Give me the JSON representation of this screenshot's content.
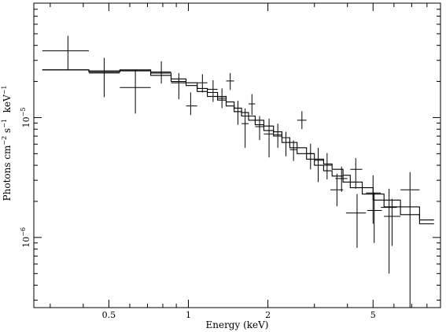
{
  "chart_data": {
    "type": "scatter",
    "xscale": "log",
    "yscale": "log",
    "xlim": [
      0.26,
      9.0
    ],
    "ylim": [
      2.6e-07,
      9e-05
    ],
    "xlabel": "Energy (keV)",
    "ylabel": {
      "base": "Photons cm",
      "exp1": "−2",
      "mid1": " s",
      "exp2": "−1",
      "mid2": "  keV",
      "exp3": "−1"
    },
    "x_ticks": [
      {
        "value": 0.5,
        "label": "0.5"
      },
      {
        "value": 1,
        "label": "1"
      },
      {
        "value": 2,
        "label": "2"
      },
      {
        "value": 5,
        "label": "5"
      }
    ],
    "y_ticks": [
      {
        "value": 1e-05,
        "base": "10",
        "exp": "−5"
      },
      {
        "value": 1e-06,
        "base": "10",
        "exp": "−6"
      }
    ],
    "series": [
      {
        "points": [
          {
            "x": 0.35,
            "xlo": 0.28,
            "xhi": 0.42,
            "y": 3.6e-05,
            "ylo": 2.5e-05,
            "yhi": 4.8e-05
          },
          {
            "x": 0.48,
            "xlo": 0.42,
            "xhi": 0.55,
            "y": 2.35e-05,
            "ylo": 1.48e-05,
            "yhi": 3.15e-05
          },
          {
            "x": 0.63,
            "xlo": 0.55,
            "xhi": 0.72,
            "y": 1.78e-05,
            "ylo": 1.08e-05,
            "yhi": 2.5e-05
          },
          {
            "x": 0.79,
            "xlo": 0.72,
            "xhi": 0.86,
            "y": 2.4e-05,
            "ylo": 1.92e-05,
            "yhi": 2.95e-05
          },
          {
            "x": 0.92,
            "xlo": 0.86,
            "xhi": 0.98,
            "y": 1.95e-05,
            "ylo": 1.42e-05,
            "yhi": 2.35e-05
          },
          {
            "x": 1.02,
            "xlo": 0.98,
            "xhi": 1.08,
            "y": 1.25e-05,
            "ylo": 1.05e-05,
            "yhi": 1.62e-05
          },
          {
            "x": 1.13,
            "xlo": 1.08,
            "xhi": 1.18,
            "y": 1.95e-05,
            "ylo": 1.62e-05,
            "yhi": 2.3e-05
          },
          {
            "x": 1.24,
            "xlo": 1.18,
            "xhi": 1.29,
            "y": 1.72e-05,
            "ylo": 1.35e-05,
            "yhi": 2.05e-05
          },
          {
            "x": 1.34,
            "xlo": 1.29,
            "xhi": 1.39,
            "y": 1.45e-05,
            "ylo": 1.2e-05,
            "yhi": 1.75e-05
          },
          {
            "x": 1.44,
            "xlo": 1.39,
            "xhi": 1.49,
            "y": 2.02e-05,
            "ylo": 1.7e-05,
            "yhi": 2.35e-05
          },
          {
            "x": 1.54,
            "xlo": 1.49,
            "xhi": 1.59,
            "y": 1.12e-05,
            "ylo": 8.7e-06,
            "yhi": 1.38e-05
          },
          {
            "x": 1.64,
            "xlo": 1.59,
            "xhi": 1.69,
            "y": 8.9e-06,
            "ylo": 5.6e-06,
            "yhi": 1.19e-05
          },
          {
            "x": 1.74,
            "xlo": 1.69,
            "xhi": 1.79,
            "y": 1.3e-05,
            "ylo": 1.05e-05,
            "yhi": 1.57e-05
          },
          {
            "x": 1.86,
            "xlo": 1.79,
            "xhi": 1.93,
            "y": 8.4e-06,
            "ylo": 6.5e-06,
            "yhi": 1.03e-05
          },
          {
            "x": 2.02,
            "xlo": 1.93,
            "xhi": 2.1,
            "y": 7.3e-06,
            "ylo": 4.65e-06,
            "yhi": 9.8e-06
          },
          {
            "x": 2.18,
            "xlo": 2.1,
            "xhi": 2.26,
            "y": 7.2e-06,
            "ylo": 5.6e-06,
            "yhi": 8.9e-06
          },
          {
            "x": 2.34,
            "xlo": 2.26,
            "xhi": 2.42,
            "y": 6.2e-06,
            "ylo": 4.75e-06,
            "yhi": 7.6e-06
          },
          {
            "x": 2.5,
            "xlo": 2.42,
            "xhi": 2.58,
            "y": 5.4e-06,
            "ylo": 4.35e-06,
            "yhi": 6.45e-06
          },
          {
            "x": 2.69,
            "xlo": 2.58,
            "xhi": 2.8,
            "y": 9.5e-06,
            "ylo": 8e-06,
            "yhi": 1.13e-05
          },
          {
            "x": 2.9,
            "xlo": 2.8,
            "xhi": 3.0,
            "y": 5e-06,
            "ylo": 3.7e-06,
            "yhi": 6.05e-06
          },
          {
            "x": 3.1,
            "xlo": 3.0,
            "xhi": 3.25,
            "y": 4.4e-06,
            "ylo": 2.9e-06,
            "yhi": 5.6e-06
          },
          {
            "x": 3.35,
            "xlo": 3.25,
            "xhi": 3.5,
            "y": 4e-06,
            "ylo": 3.05e-06,
            "yhi": 5.05e-06
          },
          {
            "x": 3.65,
            "xlo": 3.45,
            "xhi": 3.85,
            "y": 2.5e-06,
            "ylo": 1.82e-06,
            "yhi": 3.4e-06
          },
          {
            "x": 3.8,
            "xlo": 3.6,
            "xhi": 4.0,
            "y": 3.1e-06,
            "ylo": 2.4e-06,
            "yhi": 3.9e-06
          },
          {
            "x": 4.3,
            "xlo": 4.1,
            "xhi": 4.55,
            "y": 3.7e-06,
            "ylo": 2.55e-06,
            "yhi": 4.6e-06
          },
          {
            "x": 4.35,
            "xlo": 3.95,
            "xhi": 4.7,
            "y": 1.6e-06,
            "ylo": 8.2e-07,
            "yhi": 2.3e-06
          },
          {
            "x": 5.0,
            "xlo": 4.7,
            "xhi": 5.35,
            "y": 2.35e-06,
            "ylo": 1.3e-06,
            "yhi": 3.3e-06
          },
          {
            "x": 5.05,
            "xlo": 4.75,
            "xhi": 5.4,
            "y": 1.68e-06,
            "ylo": 9e-07,
            "yhi": 2.35e-06
          },
          {
            "x": 5.75,
            "xlo": 5.35,
            "xhi": 6.15,
            "y": 1.78e-06,
            "ylo": 5e-07,
            "yhi": 2.55e-06
          },
          {
            "x": 5.9,
            "xlo": 5.5,
            "xhi": 6.35,
            "y": 1.5e-06,
            "ylo": 8.5e-07,
            "yhi": 2.1e-06
          },
          {
            "x": 6.9,
            "xlo": 6.35,
            "xhi": 7.5,
            "y": 2.5e-06,
            "ylo": 2.6e-07,
            "yhi": 3.5e-06
          }
        ]
      }
    ],
    "models": [
      {
        "steps": [
          [
            0.28,
            2.5e-05
          ],
          [
            0.42,
            2.45e-05
          ],
          [
            0.55,
            2.5e-05
          ],
          [
            0.72,
            2.35e-05
          ],
          [
            0.86,
            2.1e-05
          ],
          [
            0.98,
            1.95e-05
          ],
          [
            1.08,
            1.75e-05
          ],
          [
            1.18,
            1.62e-05
          ],
          [
            1.29,
            1.5e-05
          ],
          [
            1.39,
            1.35e-05
          ],
          [
            1.49,
            1.2e-05
          ],
          [
            1.59,
            1.1e-05
          ],
          [
            1.69,
            1.03e-05
          ],
          [
            1.79,
            9.5e-06
          ],
          [
            1.93,
            8.5e-06
          ],
          [
            2.1,
            7.6e-06
          ],
          [
            2.26,
            6.8e-06
          ],
          [
            2.42,
            6.2e-06
          ],
          [
            2.58,
            5.6e-06
          ],
          [
            2.8,
            5e-06
          ],
          [
            3.0,
            4.5e-06
          ],
          [
            3.25,
            4.1e-06
          ],
          [
            3.5,
            3.7e-06
          ],
          [
            3.85,
            3.3e-06
          ],
          [
            4.1,
            2.9e-06
          ],
          [
            4.55,
            2.6e-06
          ],
          [
            5.0,
            2.3e-06
          ],
          [
            5.5,
            2.05e-06
          ],
          [
            6.35,
            1.8e-06
          ],
          [
            7.5,
            1.4e-06
          ],
          [
            8.5,
            1.4e-06
          ]
        ]
      },
      {
        "steps": [
          [
            0.28,
            2.5e-05
          ],
          [
            0.42,
            2.4e-05
          ],
          [
            0.55,
            2.45e-05
          ],
          [
            0.72,
            2.25e-05
          ],
          [
            0.86,
            2e-05
          ],
          [
            0.98,
            1.85e-05
          ],
          [
            1.08,
            1.65e-05
          ],
          [
            1.18,
            1.5e-05
          ],
          [
            1.29,
            1.4e-05
          ],
          [
            1.39,
            1.25e-05
          ],
          [
            1.49,
            1.12e-05
          ],
          [
            1.59,
            1.03e-05
          ],
          [
            1.69,
            9.5e-06
          ],
          [
            1.79,
            8.7e-06
          ],
          [
            1.93,
            7.8e-06
          ],
          [
            2.1,
            7e-06
          ],
          [
            2.26,
            6.2e-06
          ],
          [
            2.42,
            5.6e-06
          ],
          [
            2.58,
            5e-06
          ],
          [
            2.8,
            4.5e-06
          ],
          [
            3.0,
            4e-06
          ],
          [
            3.25,
            3.6e-06
          ],
          [
            3.5,
            3.25e-06
          ],
          [
            3.85,
            2.9e-06
          ],
          [
            4.1,
            2.6e-06
          ],
          [
            4.55,
            2.3e-06
          ],
          [
            5.0,
            2.05e-06
          ],
          [
            5.5,
            1.8e-06
          ],
          [
            6.35,
            1.55e-06
          ],
          [
            7.5,
            1.3e-06
          ],
          [
            8.5,
            1.3e-06
          ]
        ]
      }
    ]
  }
}
